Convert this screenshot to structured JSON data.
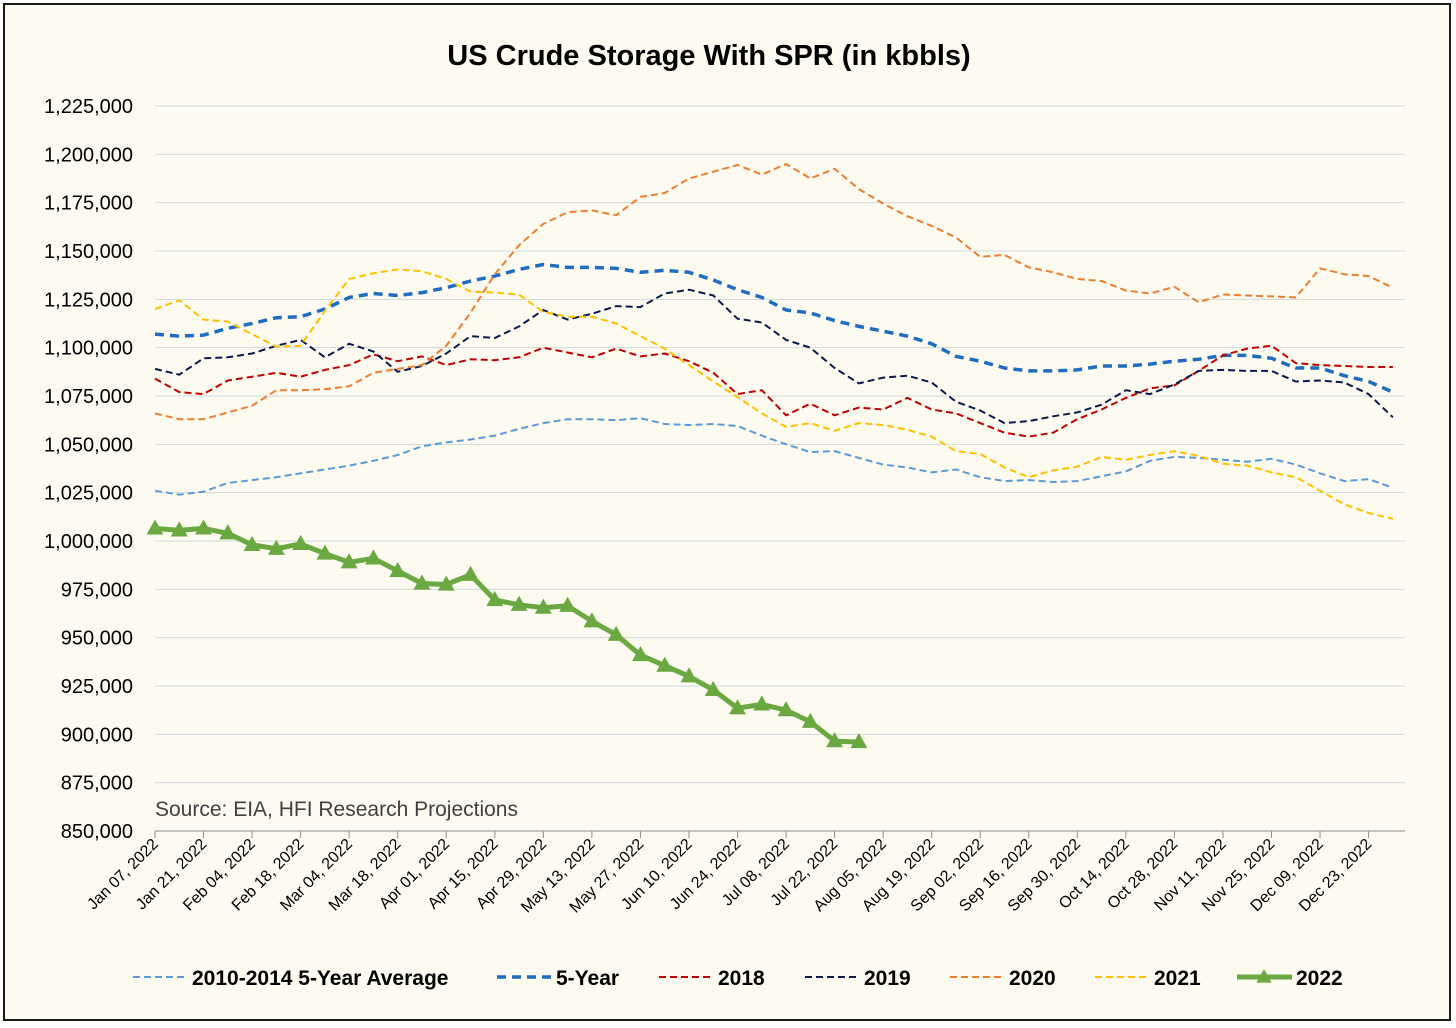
{
  "chart_data": {
    "type": "line",
    "title": "US Crude Storage With SPR (in kbbls)",
    "source": "Source: EIA, HFI Research Projections",
    "ylim": [
      850000,
      1225000
    ],
    "ytick_step": 25000,
    "y_tick_labels": [
      "850,000",
      "875,000",
      "900,000",
      "925,000",
      "950,000",
      "975,000",
      "1,000,000",
      "1,025,000",
      "1,050,000",
      "1,075,000",
      "1,100,000",
      "1,125,000",
      "1,150,000",
      "1,175,000",
      "1,200,000",
      "1,225,000"
    ],
    "grid": "horizontal",
    "legend_position": "bottom",
    "x_tick_labels": [
      "Jan 07, 2022",
      "Jan 21, 2022",
      "Feb 04, 2022",
      "Feb 18, 2022",
      "Mar 04, 2022",
      "Mar 18, 2022",
      "Apr 01, 2022",
      "Apr 15, 2022",
      "Apr 29, 2022",
      "May 13, 2022",
      "May 27, 2022",
      "Jun 10, 2022",
      "Jun 24, 2022",
      "Jul 08, 2022",
      "Jul 22, 2022",
      "Aug 05, 2022",
      "Aug 19, 2022",
      "Sep 02, 2022",
      "Sep 16, 2022",
      "Sep 30, 2022",
      "Oct 14, 2022",
      "Oct 28, 2022",
      "Nov 11, 2022",
      "Nov 25, 2022",
      "Dec 09, 2022",
      "Dec 23, 2022"
    ],
    "week_count": 52,
    "series": [
      {
        "name": "2010-2014 5-Year Average",
        "color": "#5b9bd5",
        "dash": "dash",
        "width": 2,
        "values": [
          1026000,
          1024000,
          1025500,
          1030000,
          1031500,
          1033000,
          1035000,
          1037000,
          1039000,
          1041500,
          1044500,
          1049000,
          1051000,
          1052500,
          1054500,
          1058000,
          1061000,
          1063000,
          1063000,
          1062500,
          1063500,
          1060500,
          1060000,
          1060500,
          1059500,
          1054500,
          1050000,
          1046000,
          1046500,
          1043000,
          1039500,
          1038000,
          1035500,
          1037000,
          1033000,
          1031000,
          1031500,
          1030500,
          1031000,
          1033500,
          1036000,
          1041500,
          1043500,
          1043000,
          1042000,
          1041000,
          1042500,
          1039500,
          1035000,
          1031000,
          1032000,
          1027500
        ]
      },
      {
        "name": "5-Year",
        "color": "#1f6cc0",
        "dash": "dash",
        "width": 3.5,
        "values": [
          1107000,
          1106000,
          1106500,
          1110000,
          1112500,
          1115500,
          1116000,
          1120000,
          1126000,
          1128000,
          1127000,
          1128500,
          1131000,
          1134500,
          1137000,
          1140500,
          1143000,
          1141500,
          1141500,
          1141000,
          1139000,
          1140000,
          1139000,
          1135000,
          1130000,
          1126000,
          1119500,
          1118000,
          1114000,
          1111000,
          1108500,
          1106000,
          1102000,
          1095500,
          1093000,
          1089500,
          1088000,
          1088000,
          1088500,
          1090500,
          1090500,
          1091500,
          1093000,
          1094000,
          1096000,
          1096000,
          1094500,
          1089500,
          1089500,
          1085500,
          1082500,
          1077000
        ]
      },
      {
        "name": "2018",
        "color": "#c00000",
        "dash": "dash",
        "width": 2,
        "values": [
          1084000,
          1077000,
          1076000,
          1083000,
          1085000,
          1087000,
          1085000,
          1088500,
          1091000,
          1096500,
          1093000,
          1095500,
          1091000,
          1094000,
          1093500,
          1095000,
          1100000,
          1097500,
          1095000,
          1099500,
          1095500,
          1097000,
          1093000,
          1087000,
          1076000,
          1078000,
          1065000,
          1071000,
          1065000,
          1069000,
          1068000,
          1074000,
          1068000,
          1066000,
          1061000,
          1056000,
          1054000,
          1056000,
          1063000,
          1068000,
          1074000,
          1079000,
          1080500,
          1088000,
          1096000,
          1099500,
          1101000,
          1092000,
          1091000,
          1090500,
          1090000,
          1090000
        ]
      },
      {
        "name": "2019",
        "color": "#0a1a4f",
        "dash": "dash",
        "width": 2,
        "values": [
          1089000,
          1086000,
          1094500,
          1095000,
          1097000,
          1101000,
          1104000,
          1095000,
          1102000,
          1098000,
          1087500,
          1090500,
          1097000,
          1106000,
          1105000,
          1111000,
          1119500,
          1114500,
          1117500,
          1121500,
          1121000,
          1128000,
          1130000,
          1127000,
          1115000,
          1113000,
          1104000,
          1100000,
          1089500,
          1081500,
          1084500,
          1085500,
          1082000,
          1072000,
          1067500,
          1061000,
          1062000,
          1064500,
          1066500,
          1070500,
          1078000,
          1076000,
          1081000,
          1088000,
          1088500,
          1088000,
          1088000,
          1082500,
          1083000,
          1082000,
          1076000,
          1064000
        ]
      },
      {
        "name": "2020",
        "color": "#ed7d31",
        "dash": "dash",
        "width": 2,
        "values": [
          1066000,
          1063000,
          1063000,
          1066500,
          1070000,
          1078000,
          1078000,
          1078500,
          1080000,
          1087000,
          1089000,
          1091000,
          1101000,
          1118000,
          1138000,
          1153000,
          1164000,
          1170000,
          1171000,
          1168500,
          1178000,
          1180000,
          1187500,
          1191000,
          1194500,
          1189500,
          1195000,
          1187500,
          1192500,
          1182000,
          1174500,
          1168000,
          1163000,
          1157000,
          1147000,
          1148000,
          1141500,
          1139000,
          1135500,
          1134500,
          1129500,
          1128000,
          1131500,
          1123500,
          1127500,
          1127000,
          1126500,
          1126000,
          1141000,
          1138000,
          1137000,
          1131000
        ]
      },
      {
        "name": "2021",
        "color": "#ffc000",
        "dash": "dash",
        "width": 2,
        "values": [
          1120000,
          1124500,
          1114500,
          1113500,
          1107000,
          1100500,
          1101000,
          1119000,
          1135500,
          1138500,
          1140500,
          1139500,
          1135500,
          1129000,
          1128500,
          1127500,
          1118500,
          1116000,
          1116000,
          1112500,
          1106000,
          1099500,
          1091000,
          1082500,
          1074500,
          1066000,
          1059000,
          1061000,
          1057000,
          1061000,
          1060000,
          1057500,
          1054000,
          1046500,
          1045000,
          1038000,
          1033000,
          1036500,
          1038500,
          1043500,
          1042000,
          1044500,
          1046500,
          1044000,
          1040000,
          1039000,
          1035500,
          1033000,
          1026000,
          1019000,
          1014500,
          1011500
        ]
      },
      {
        "name": "2022",
        "color": "#6aa842",
        "dash": "solid",
        "width": 5,
        "marker": "triangle",
        "values": [
          1006500,
          1005500,
          1006500,
          1004000,
          998000,
          996000,
          998500,
          993500,
          989000,
          991000,
          984500,
          978000,
          977500,
          982500,
          969500,
          967000,
          965500,
          966500,
          958500,
          951500,
          941000,
          935500,
          930000,
          923000,
          913500,
          915500,
          912500,
          906500,
          896500,
          896000
        ]
      }
    ]
  }
}
